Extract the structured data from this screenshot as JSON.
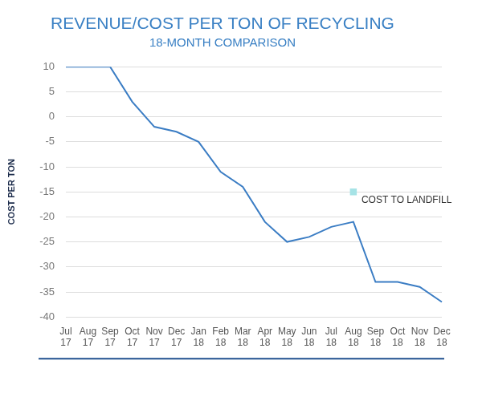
{
  "chart_data": {
    "type": "line",
    "title": "REVENUE/COST PER TON OF RECYCLING",
    "subtitle": "18-MONTH COMPARISON",
    "y_label": "COST PER TON",
    "categories": [
      "Jul 17",
      "Aug 17",
      "Sep 17",
      "Oct 17",
      "Nov 17",
      "Dec 17",
      "Jan 18",
      "Feb 18",
      "Mar 18",
      "Apr 18",
      "May 18",
      "Jun 18",
      "Jul 18",
      "Aug 18",
      "Sep 18",
      "Oct 18",
      "Nov 18",
      "Dec 18"
    ],
    "series": [
      {
        "color": "#3b7dc4",
        "values": [
          10,
          10,
          10,
          3,
          -2,
          -3,
          -5,
          -11,
          -14,
          -21,
          -25,
          -24,
          -22,
          -21,
          -33,
          -33,
          -34,
          -37
        ]
      },
      {
        "name": "COST TO LANDFILL",
        "type": "scatter",
        "marker": "square",
        "color": "#a6e3e6",
        "values": [
          null,
          null,
          null,
          null,
          null,
          null,
          null,
          null,
          null,
          null,
          null,
          null,
          null,
          -15,
          null,
          null,
          null,
          null
        ]
      }
    ],
    "ylim": [
      -40,
      10
    ],
    "yticks": [
      -40,
      -35,
      -30,
      -25,
      -20,
      -15,
      -10,
      -5,
      0,
      5,
      10
    ],
    "grid": true
  }
}
